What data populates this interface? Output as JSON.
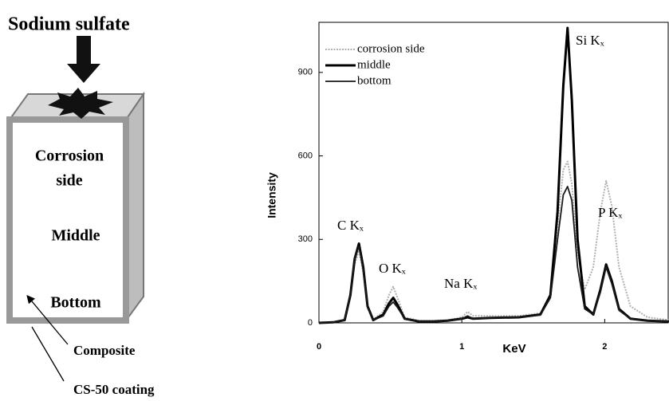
{
  "diagram": {
    "title": "Sodium sulfate",
    "labels": [
      "Corrosion",
      "side",
      "Middle",
      "Bottom"
    ],
    "callouts": [
      "Composite",
      "CS-50 coating"
    ]
  },
  "chart_data": {
    "type": "line",
    "xlabel": "KeV",
    "ylabel": "Intensity",
    "xlim": [
      0,
      2.45
    ],
    "ylim": [
      0,
      1080
    ],
    "xticks": [
      0,
      1,
      2
    ],
    "yticks": [
      0,
      300,
      600,
      900
    ],
    "legend": "upper left",
    "annotations": [
      "Si Kₓ",
      "P Kₓ",
      "C Kₓ",
      "O Kₓ",
      "Na Kₓ"
    ],
    "x": [
      0,
      0.1,
      0.18,
      0.22,
      0.25,
      0.28,
      0.31,
      0.34,
      0.38,
      0.45,
      0.49,
      0.52,
      0.55,
      0.6,
      0.7,
      0.8,
      0.9,
      1.0,
      1.04,
      1.08,
      1.2,
      1.4,
      1.55,
      1.62,
      1.67,
      1.71,
      1.74,
      1.77,
      1.81,
      1.86,
      1.92,
      1.97,
      2.01,
      2.05,
      2.1,
      2.18,
      2.3,
      2.45
    ],
    "series": [
      {
        "name": "corrosion side",
        "color": "#b0b0b0",
        "values": [
          0,
          2,
          10,
          90,
          210,
          260,
          180,
          55,
          12,
          40,
          100,
          130,
          90,
          20,
          8,
          8,
          10,
          20,
          40,
          25,
          25,
          25,
          35,
          100,
          350,
          550,
          580,
          500,
          250,
          120,
          200,
          400,
          510,
          420,
          200,
          60,
          20,
          10
        ]
      },
      {
        "name": "middle",
        "color": "#000000",
        "values": [
          0,
          2,
          10,
          100,
          230,
          285,
          200,
          60,
          10,
          30,
          70,
          90,
          65,
          15,
          5,
          5,
          8,
          15,
          20,
          15,
          18,
          20,
          30,
          100,
          400,
          850,
          1060,
          800,
          300,
          60,
          30,
          120,
          210,
          150,
          50,
          15,
          8,
          5
        ]
      },
      {
        "name": "bottom",
        "color": "#1a1a1a",
        "values": [
          0,
          2,
          10,
          100,
          230,
          275,
          190,
          55,
          10,
          25,
          60,
          75,
          55,
          15,
          5,
          5,
          8,
          15,
          25,
          15,
          18,
          20,
          28,
          90,
          300,
          460,
          490,
          440,
          200,
          50,
          30,
          110,
          200,
          140,
          45,
          15,
          8,
          5
        ]
      }
    ]
  }
}
